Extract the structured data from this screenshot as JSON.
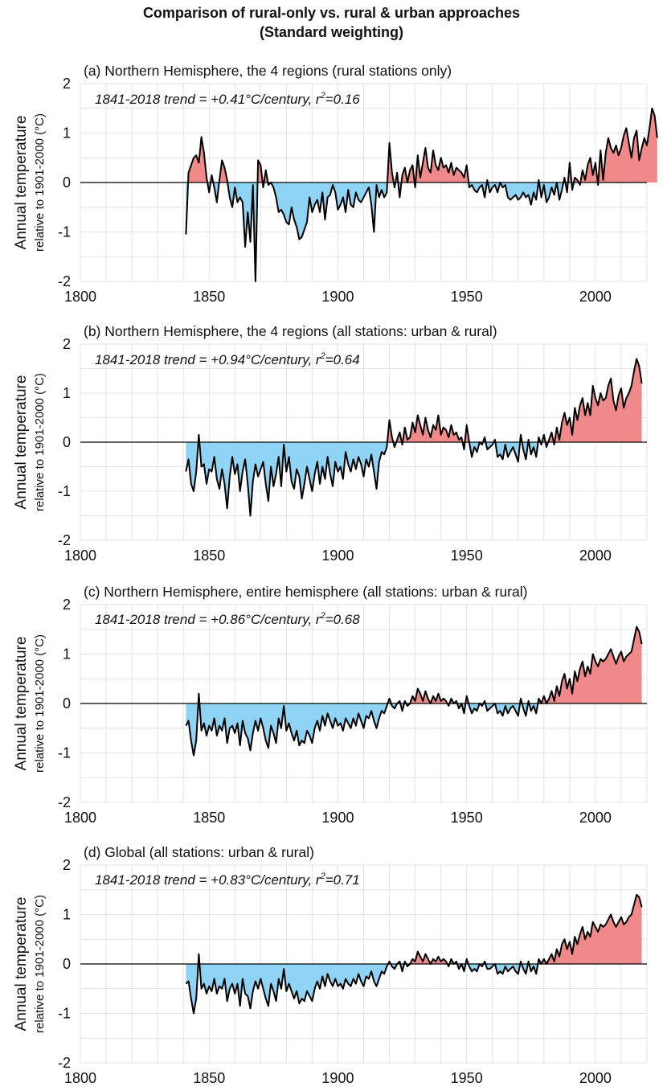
{
  "figure": {
    "title_line1": "Comparison of rural-only vs. rural & urban approaches",
    "title_line2": "(Standard weighting)",
    "ylabel_line1": "Annual temperature",
    "ylabel_line2": "relative to 1901-2000 (°C)",
    "colors": {
      "positive": "#f08a8a",
      "negative": "#8fd4f5",
      "line": "#000000",
      "grid": "#e4e4e4"
    }
  },
  "chart_data": [
    {
      "type": "area",
      "title": "(a) Northern Hemisphere, the 4 regions (rural stations only)",
      "annotation": "1841-2018 trend = +0.41°C/century, r²=0.16",
      "xlabel": "",
      "ylabel": "Annual temperature relative to 1901-2000 (°C)",
      "xlim": [
        1800,
        2020
      ],
      "ylim": [
        -2,
        2
      ],
      "xticks": [
        1800,
        1850,
        1900,
        1950,
        2000
      ],
      "yticks": [
        2,
        1,
        0,
        -1,
        -2
      ],
      "grid": true,
      "x_start": 1841,
      "values": [
        -1.05,
        0.2,
        0.35,
        0.5,
        0.55,
        0.4,
        0.92,
        0.6,
        0.1,
        -0.2,
        0.15,
        -0.1,
        -0.4,
        0.05,
        0.45,
        0.3,
        0.05,
        -0.3,
        -0.5,
        -0.1,
        -0.4,
        -0.3,
        -0.4,
        -1.3,
        -0.6,
        -1.2,
        -0.05,
        -2.0,
        0.45,
        0.35,
        -0.1,
        0.25,
        -0.05,
        0.0,
        -0.1,
        -0.3,
        -0.6,
        -0.55,
        -0.65,
        -0.8,
        -0.85,
        -0.5,
        -0.75,
        -0.9,
        -1.15,
        -1.1,
        -0.95,
        -0.8,
        -0.3,
        -0.6,
        -0.45,
        -0.35,
        -0.6,
        -0.2,
        -0.75,
        -0.3,
        -0.25,
        -0.05,
        -0.2,
        -0.55,
        -0.45,
        -0.3,
        -0.6,
        -0.15,
        -0.45,
        -0.5,
        -0.2,
        -0.35,
        -0.4,
        -0.3,
        -0.2,
        -0.1,
        -0.45,
        -1.0,
        -0.05,
        -0.3,
        -0.15,
        -0.3,
        -0.2,
        0.8,
        0.2,
        -0.1,
        0.2,
        -0.3,
        0.15,
        0.3,
        0.0,
        0.25,
        0.35,
        -0.1,
        0.55,
        0.1,
        0.4,
        0.7,
        0.3,
        0.2,
        0.65,
        0.35,
        0.25,
        0.5,
        0.3,
        0.35,
        0.2,
        0.4,
        0.15,
        0.3,
        0.25,
        0.2,
        0.1,
        0.35,
        -0.1,
        -0.05,
        -0.15,
        -0.2,
        -0.1,
        -0.05,
        -0.3,
        0.05,
        -0.2,
        -0.1,
        -0.05,
        -0.2,
        0.0,
        -0.1,
        -0.05,
        -0.3,
        -0.35,
        -0.3,
        -0.25,
        -0.35,
        -0.3,
        -0.2,
        -0.3,
        -0.25,
        -0.45,
        -0.2,
        -0.35,
        0.05,
        -0.3,
        -0.05,
        -0.4,
        -0.3,
        -0.1,
        -0.25,
        0.0,
        -0.35,
        -0.15,
        0.1,
        -0.2,
        0.4,
        -0.15,
        0.1,
        0.05,
        -0.05,
        0.25,
        0.05,
        0.35,
        0.5,
        0.15,
        0.4,
        -0.05,
        0.65,
        0.05,
        0.6,
        0.9,
        0.7,
        0.6,
        0.75,
        0.55,
        0.7,
        0.95,
        1.1,
        0.8,
        0.5,
        0.9,
        1.05,
        0.45,
        0.7,
        0.9,
        0.75,
        1.1,
        1.5,
        1.35,
        0.9
      ]
    },
    {
      "type": "area",
      "title": "(b) Northern Hemisphere, the 4 regions (all stations: urban & rural)",
      "annotation": "1841-2018 trend = +0.94°C/century, r²=0.64",
      "xlabel": "",
      "ylabel": "Annual temperature relative to 1901-2000 (°C)",
      "xlim": [
        1800,
        2020
      ],
      "ylim": [
        -2,
        2
      ],
      "xticks": [
        1800,
        1850,
        1900,
        1950,
        2000
      ],
      "yticks": [
        2,
        1,
        0,
        -1,
        -2
      ],
      "grid": true,
      "x_start": 1841,
      "values": [
        -0.6,
        -0.35,
        -0.85,
        -1.0,
        -0.6,
        0.15,
        -0.5,
        -0.45,
        -0.85,
        -0.55,
        -0.6,
        -0.3,
        -0.75,
        -0.95,
        -0.55,
        -0.85,
        -1.35,
        -0.7,
        -0.3,
        -0.65,
        -0.45,
        -1.0,
        -0.6,
        -0.35,
        -0.85,
        -1.5,
        -0.8,
        -0.45,
        -0.7,
        -0.55,
        -0.4,
        -0.85,
        -1.2,
        -0.5,
        -0.9,
        -0.65,
        -0.3,
        -0.9,
        -0.05,
        -0.6,
        -0.3,
        -0.8,
        -0.95,
        -0.55,
        -0.7,
        -1.15,
        -0.85,
        -0.5,
        -0.75,
        -1.0,
        -0.65,
        -0.4,
        -0.85,
        -0.5,
        -0.75,
        -0.3,
        -0.65,
        -0.9,
        -0.4,
        -0.6,
        -0.5,
        -0.75,
        -0.2,
        -0.45,
        -0.6,
        -0.35,
        -0.55,
        -0.3,
        -0.45,
        -0.7,
        -0.35,
        -0.5,
        -0.25,
        -0.6,
        -0.95,
        -0.4,
        -0.2,
        -0.25,
        -0.1,
        0.45,
        0.1,
        -0.1,
        0.05,
        0.2,
        -0.05,
        0.3,
        0.05,
        0.1,
        0.4,
        0.2,
        0.55,
        0.35,
        0.15,
        0.5,
        0.25,
        0.1,
        0.35,
        0.25,
        0.55,
        0.15,
        0.3,
        0.25,
        0.1,
        0.35,
        0.15,
        0.2,
        0.05,
        0.1,
        -0.15,
        0.35,
        0.0,
        -0.3,
        -0.1,
        -0.2,
        0.0,
        -0.05,
        0.1,
        -0.15,
        -0.1,
        -0.05,
        0.05,
        -0.3,
        -0.25,
        -0.35,
        -0.05,
        -0.3,
        -0.2,
        -0.1,
        -0.25,
        -0.4,
        0.15,
        -0.15,
        -0.35,
        0.05,
        -0.25,
        -0.1,
        -0.3,
        0.1,
        -0.05,
        0.15,
        -0.1,
        0.05,
        0.2,
        -0.05,
        0.3,
        0.05,
        0.4,
        0.6,
        0.35,
        0.5,
        0.15,
        0.7,
        0.45,
        0.75,
        0.9,
        0.55,
        0.8,
        0.55,
        1.15,
        0.9,
        0.75,
        1.0,
        0.85,
        0.9,
        1.15,
        1.3,
        0.85,
        0.65,
        0.95,
        1.1,
        0.7,
        0.9,
        1.0,
        1.15,
        1.45,
        1.7,
        1.55,
        1.2
      ]
    },
    {
      "type": "area",
      "title": "(c) Northern Hemisphere, entire hemisphere (all stations: urban & rural)",
      "annotation": "1841-2018 trend = +0.86°C/century, r²=0.68",
      "xlabel": "",
      "ylabel": "Annual temperature relative to 1901-2000 (°C)",
      "xlim": [
        1800,
        2020
      ],
      "ylim": [
        -2,
        2
      ],
      "xticks": [
        1800,
        1850,
        1900,
        1950,
        2000
      ],
      "yticks": [
        2,
        1,
        0,
        -1,
        -2
      ],
      "grid": true,
      "x_start": 1841,
      "values": [
        -0.45,
        -0.35,
        -0.75,
        -1.05,
        -0.75,
        0.2,
        -0.55,
        -0.4,
        -0.65,
        -0.45,
        -0.55,
        -0.3,
        -0.65,
        -0.45,
        -0.55,
        -0.3,
        -0.8,
        -0.5,
        -0.45,
        -0.6,
        -0.4,
        -0.85,
        -0.35,
        -0.6,
        -0.7,
        -0.95,
        -0.6,
        -0.35,
        -0.55,
        -0.3,
        -0.5,
        -0.75,
        -0.9,
        -0.45,
        -0.6,
        -0.8,
        -0.3,
        -0.5,
        -0.05,
        -0.55,
        -0.4,
        -0.6,
        -0.75,
        -0.55,
        -0.85,
        -0.75,
        -0.8,
        -0.55,
        -0.65,
        -0.8,
        -0.5,
        -0.35,
        -0.55,
        -0.25,
        -0.45,
        -0.2,
        -0.35,
        -0.5,
        -0.3,
        -0.45,
        -0.4,
        -0.55,
        -0.3,
        -0.4,
        -0.5,
        -0.3,
        -0.45,
        -0.2,
        -0.35,
        -0.5,
        -0.25,
        -0.3,
        -0.15,
        -0.35,
        -0.5,
        -0.3,
        -0.15,
        -0.2,
        -0.05,
        0.1,
        -0.05,
        -0.1,
        0.0,
        0.05,
        -0.15,
        0.05,
        -0.05,
        0.0,
        0.15,
        0.05,
        0.3,
        0.2,
        0.05,
        0.25,
        0.1,
        0.0,
        0.15,
        0.05,
        0.2,
        0.05,
        0.1,
        0.05,
        -0.05,
        0.1,
        0.0,
        0.05,
        -0.1,
        0.0,
        -0.2,
        0.15,
        -0.05,
        -0.2,
        -0.1,
        -0.15,
        0.0,
        -0.05,
        0.05,
        -0.15,
        -0.1,
        -0.05,
        0.0,
        -0.2,
        -0.15,
        -0.25,
        -0.05,
        -0.2,
        -0.1,
        -0.05,
        -0.15,
        -0.25,
        0.1,
        -0.1,
        -0.25,
        0.05,
        -0.15,
        -0.05,
        -0.2,
        0.1,
        0.0,
        0.15,
        0.0,
        0.1,
        0.25,
        0.05,
        0.35,
        0.15,
        0.45,
        0.6,
        0.3,
        0.5,
        0.2,
        0.65,
        0.45,
        0.7,
        0.85,
        0.55,
        0.75,
        0.6,
        1.0,
        0.85,
        0.75,
        0.9,
        0.85,
        0.9,
        1.0,
        1.1,
        0.95,
        0.8,
        0.95,
        1.05,
        0.85,
        0.95,
        1.0,
        1.05,
        1.3,
        1.55,
        1.45,
        1.2
      ]
    },
    {
      "type": "area",
      "title": "(d) Global (all stations: urban & rural)",
      "annotation": "1841-2018 trend = +0.83°C/century, r²=0.71",
      "xlabel": "",
      "ylabel": "Annual temperature relative to 1901-2000 (°C)",
      "xlim": [
        1800,
        2020
      ],
      "ylim": [
        -2,
        2
      ],
      "xticks": [
        1800,
        1850,
        1900,
        1950,
        2000
      ],
      "yticks": [
        2,
        1,
        0,
        -1,
        -2
      ],
      "grid": true,
      "x_start": 1841,
      "values": [
        -0.4,
        -0.35,
        -0.7,
        -1.0,
        -0.7,
        0.2,
        -0.5,
        -0.4,
        -0.6,
        -0.45,
        -0.55,
        -0.3,
        -0.6,
        -0.45,
        -0.5,
        -0.3,
        -0.75,
        -0.5,
        -0.4,
        -0.6,
        -0.4,
        -0.85,
        -0.3,
        -0.6,
        -0.65,
        -0.9,
        -0.55,
        -0.35,
        -0.5,
        -0.3,
        -0.5,
        -0.7,
        -0.85,
        -0.4,
        -0.55,
        -0.75,
        -0.3,
        -0.5,
        -0.1,
        -0.55,
        -0.4,
        -0.55,
        -0.7,
        -0.55,
        -0.8,
        -0.7,
        -0.75,
        -0.55,
        -0.65,
        -0.75,
        -0.5,
        -0.35,
        -0.5,
        -0.25,
        -0.45,
        -0.2,
        -0.35,
        -0.45,
        -0.3,
        -0.45,
        -0.4,
        -0.5,
        -0.3,
        -0.4,
        -0.45,
        -0.3,
        -0.4,
        -0.2,
        -0.35,
        -0.45,
        -0.25,
        -0.3,
        -0.15,
        -0.35,
        -0.45,
        -0.3,
        -0.15,
        -0.2,
        -0.05,
        0.05,
        -0.05,
        -0.1,
        0.0,
        0.05,
        -0.15,
        0.05,
        -0.05,
        0.0,
        0.1,
        0.05,
        0.25,
        0.15,
        0.05,
        0.2,
        0.1,
        0.0,
        0.1,
        0.05,
        0.15,
        0.05,
        0.1,
        0.05,
        -0.05,
        0.1,
        0.0,
        0.05,
        -0.1,
        0.0,
        -0.15,
        0.1,
        -0.05,
        -0.15,
        -0.1,
        -0.15,
        0.0,
        -0.05,
        0.05,
        -0.1,
        -0.1,
        -0.05,
        0.0,
        -0.2,
        -0.15,
        -0.2,
        -0.05,
        -0.15,
        -0.1,
        -0.05,
        -0.15,
        -0.2,
        0.05,
        -0.1,
        -0.2,
        0.05,
        -0.15,
        -0.05,
        -0.2,
        0.1,
        0.0,
        0.1,
        0.0,
        0.1,
        0.2,
        0.05,
        0.3,
        0.15,
        0.4,
        0.5,
        0.3,
        0.45,
        0.2,
        0.55,
        0.4,
        0.6,
        0.75,
        0.5,
        0.65,
        0.55,
        0.85,
        0.75,
        0.65,
        0.8,
        0.75,
        0.8,
        0.9,
        1.0,
        0.85,
        0.75,
        0.85,
        0.95,
        0.8,
        0.85,
        0.95,
        1.0,
        1.2,
        1.4,
        1.35,
        1.15
      ]
    }
  ]
}
